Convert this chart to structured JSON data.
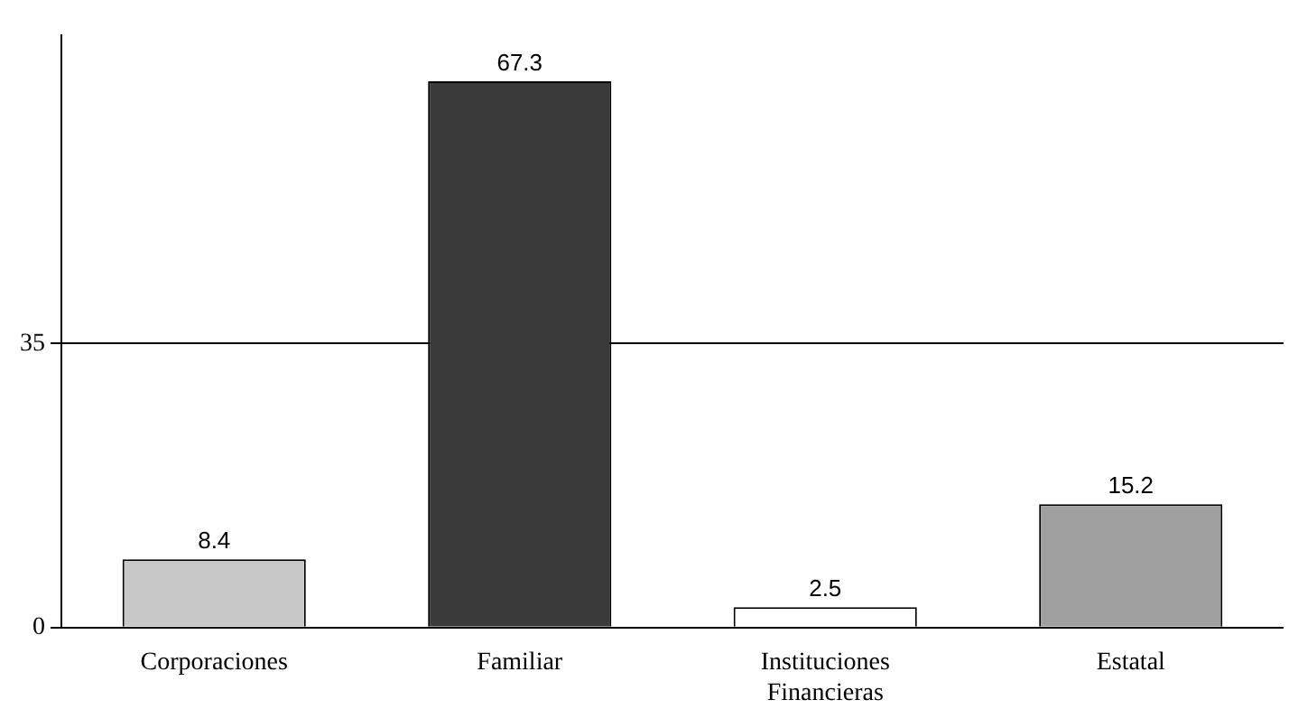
{
  "chart_data": {
    "type": "bar",
    "categories": [
      "Corporaciones",
      "Familiar",
      "Instituciones Financieras",
      "Estatal"
    ],
    "values": [
      8.4,
      67.3,
      2.5,
      15.2
    ],
    "colors": [
      "#c8c8c8",
      "#3a3a3a",
      "#ffffff",
      "#a0a0a0"
    ],
    "ylim": [
      0,
      73
    ],
    "yticks": [
      0,
      35
    ],
    "grid": "y",
    "data_labels": true
  }
}
